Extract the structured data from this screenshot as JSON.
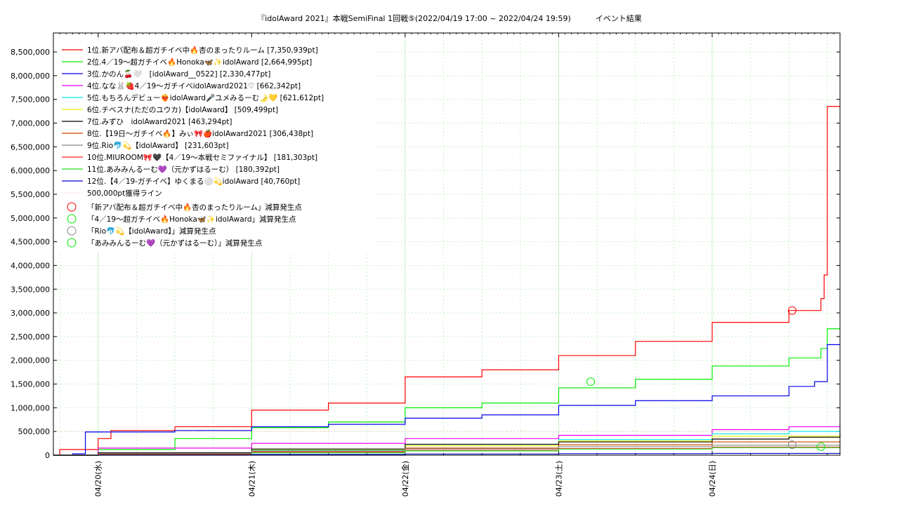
{
  "chart_data": {
    "type": "line",
    "title": "『idolAward 2021』本戦SemiFinal 1回戦⑤(2022/04/19 17:00 ~ 2022/04/24 19:59)          イベント結果",
    "xlabel": "",
    "ylabel": "",
    "x_range": [
      "2022-04-19 17:00",
      "2022-04-24 19:59"
    ],
    "ylim": [
      0,
      8900000
    ],
    "yticks": [
      0,
      500000,
      1000000,
      1500000,
      2000000,
      2500000,
      3000000,
      3500000,
      4000000,
      4500000,
      5000000,
      5500000,
      6000000,
      6500000,
      7000000,
      7500000,
      8000000,
      8500000
    ],
    "ytick_labels": [
      "0",
      "500,000",
      "1,000,000",
      "1,500,000",
      "2,000,000",
      "2,500,000",
      "3,000,000",
      "3,500,000",
      "4,000,000",
      "4,500,000",
      "5,000,000",
      "5,500,000",
      "6,000,000",
      "6,500,000",
      "7,000,000",
      "7,500,000",
      "8,000,000",
      "8,500,000"
    ],
    "xticks": [
      "2022-04-20 00:00",
      "2022-04-21 00:00",
      "2022-04-22 00:00",
      "2022-04-23 00:00",
      "2022-04-24 00:00"
    ],
    "xtick_labels": [
      "04/20(水)",
      "04/21(木)",
      "04/22(金)",
      "04/23(土)",
      "04/24(日)"
    ],
    "grid": true,
    "legend_position": "top-left",
    "series": [
      {
        "name": "1位.新アバ配布＆超ガチイベ中🔥杏のまったりルーム [7,350,939pt]",
        "color": "#ff0000",
        "points": [
          [
            "2022-04-19 17:00",
            0
          ],
          [
            "2022-04-19 18:00",
            120000
          ],
          [
            "2022-04-20 00:00",
            350000
          ],
          [
            "2022-04-20 02:00",
            520000
          ],
          [
            "2022-04-20 12:00",
            600000
          ],
          [
            "2022-04-21 00:00",
            950000
          ],
          [
            "2022-04-21 12:00",
            1100000
          ],
          [
            "2022-04-22 00:00",
            1650000
          ],
          [
            "2022-04-22 12:00",
            1800000
          ],
          [
            "2022-04-23 00:00",
            2100000
          ],
          [
            "2022-04-23 12:00",
            2400000
          ],
          [
            "2022-04-24 00:00",
            2800000
          ],
          [
            "2022-04-24 12:00",
            3050000
          ],
          [
            "2022-04-24 17:00",
            3300000
          ],
          [
            "2022-04-24 17:30",
            3800000
          ],
          [
            "2022-04-24 18:00",
            7350939
          ],
          [
            "2022-04-24 19:59",
            7350939
          ]
        ]
      },
      {
        "name": "2位.4／19〜超ガチイベ🔥Honoka🦋✨idolAward [2,664,995pt]",
        "color": "#00ee00",
        "points": [
          [
            "2022-04-19 17:00",
            0
          ],
          [
            "2022-04-20 00:00",
            120000
          ],
          [
            "2022-04-20 12:00",
            350000
          ],
          [
            "2022-04-21 00:00",
            580000
          ],
          [
            "2022-04-21 12:00",
            700000
          ],
          [
            "2022-04-22 00:00",
            1000000
          ],
          [
            "2022-04-22 12:00",
            1100000
          ],
          [
            "2022-04-23 00:00",
            1420000
          ],
          [
            "2022-04-23 12:00",
            1600000
          ],
          [
            "2022-04-24 00:00",
            1880000
          ],
          [
            "2022-04-24 12:00",
            2050000
          ],
          [
            "2022-04-24 17:00",
            2250000
          ],
          [
            "2022-04-24 18:00",
            2664995
          ],
          [
            "2022-04-24 19:59",
            2664995
          ]
        ]
      },
      {
        "name": "3位.かのん🍒🤍　[idolAward__0522] [2,330,477pt]",
        "color": "#0000ee",
        "points": [
          [
            "2022-04-19 17:00",
            0
          ],
          [
            "2022-04-19 20:00",
            30000
          ],
          [
            "2022-04-19 22:00",
            490000
          ],
          [
            "2022-04-20 12:00",
            520000
          ],
          [
            "2022-04-21 00:00",
            600000
          ],
          [
            "2022-04-21 12:00",
            650000
          ],
          [
            "2022-04-22 00:00",
            780000
          ],
          [
            "2022-04-22 12:00",
            850000
          ],
          [
            "2022-04-23 00:00",
            1050000
          ],
          [
            "2022-04-23 12:00",
            1150000
          ],
          [
            "2022-04-24 00:00",
            1250000
          ],
          [
            "2022-04-24 12:00",
            1450000
          ],
          [
            "2022-04-24 16:00",
            1550000
          ],
          [
            "2022-04-24 18:00",
            2330477
          ],
          [
            "2022-04-24 19:59",
            2330477
          ]
        ]
      },
      {
        "name": "4位.なな🐰🍓4／19〜ガチイベidolAward2021♡ [662,342pt]",
        "color": "#ee00ee",
        "points": [
          [
            "2022-04-19 17:00",
            0
          ],
          [
            "2022-04-20 00:00",
            150000
          ],
          [
            "2022-04-21 00:00",
            250000
          ],
          [
            "2022-04-22 00:00",
            350000
          ],
          [
            "2022-04-23 00:00",
            420000
          ],
          [
            "2022-04-24 00:00",
            540000
          ],
          [
            "2022-04-24 12:00",
            600000
          ],
          [
            "2022-04-24 19:59",
            662342
          ]
        ]
      },
      {
        "name": "5位.もちろんデビュー❤️‍🔥idolAward🎤ユメみるーむ🌛💛 [621,612pt]",
        "color": "#00eeee",
        "points": [
          [
            "2022-04-19 17:00",
            0
          ],
          [
            "2022-04-20 00:00",
            20000
          ],
          [
            "2022-04-21 00:00",
            100000
          ],
          [
            "2022-04-22 00:00",
            200000
          ],
          [
            "2022-04-23 00:00",
            330000
          ],
          [
            "2022-04-24 00:00",
            450000
          ],
          [
            "2022-04-24 12:00",
            500000
          ],
          [
            "2022-04-24 19:59",
            621612
          ]
        ]
      },
      {
        "name": "6位.チベスナ(ただのユウカ)【idolAward】 [509,499pt]",
        "color": "#eeee00",
        "points": [
          [
            "2022-04-19 17:00",
            0
          ],
          [
            "2022-04-20 00:00",
            30000
          ],
          [
            "2022-04-21 00:00",
            120000
          ],
          [
            "2022-04-22 00:00",
            200000
          ],
          [
            "2022-04-23 00:00",
            300000
          ],
          [
            "2022-04-24 00:00",
            400000
          ],
          [
            "2022-04-24 19:59",
            509499
          ]
        ]
      },
      {
        "name": "7位.みずひ　idolAward2021 [463,294pt]",
        "color": "#000000",
        "points": [
          [
            "2022-04-19 17:00",
            0
          ],
          [
            "2022-04-20 00:00",
            50000
          ],
          [
            "2022-04-21 00:00",
            130000
          ],
          [
            "2022-04-22 00:00",
            230000
          ],
          [
            "2022-04-23 00:00",
            280000
          ],
          [
            "2022-04-24 00:00",
            340000
          ],
          [
            "2022-04-24 12:00",
            380000
          ],
          [
            "2022-04-24 19:59",
            463294
          ]
        ]
      },
      {
        "name": "8位.【19日〜ガチイベ🔥】みぃ🎀🍎idolAward2021 [306,438pt]",
        "color": "#cc4400",
        "points": [
          [
            "2022-04-19 17:00",
            0
          ],
          [
            "2022-04-20 00:00",
            20000
          ],
          [
            "2022-04-21 00:00",
            80000
          ],
          [
            "2022-04-22 00:00",
            150000
          ],
          [
            "2022-04-23 00:00",
            220000
          ],
          [
            "2022-04-24 00:00",
            280000
          ],
          [
            "2022-04-24 19:59",
            306438
          ]
        ]
      },
      {
        "name": "9位.Rio🐬💫【idolAward】 [231,603pt]",
        "color": "#888888",
        "points": [
          [
            "2022-04-19 17:00",
            0
          ],
          [
            "2022-04-20 00:00",
            30000
          ],
          [
            "2022-04-21 00:00",
            90000
          ],
          [
            "2022-04-22 00:00",
            130000
          ],
          [
            "2022-04-23 00:00",
            180000
          ],
          [
            "2022-04-24 00:00",
            210000
          ],
          [
            "2022-04-24 19:59",
            231603
          ]
        ]
      },
      {
        "name": "10位.MIUROOM🎀🖤【4／19〜本戦セミファイナル】 [181,303pt]",
        "color": "#ff2222",
        "points": [
          [
            "2022-04-19 17:00",
            0
          ],
          [
            "2022-04-20 00:00",
            20000
          ],
          [
            "2022-04-21 00:00",
            60000
          ],
          [
            "2022-04-22 00:00",
            100000
          ],
          [
            "2022-04-23 00:00",
            140000
          ],
          [
            "2022-04-24 00:00",
            170000
          ],
          [
            "2022-04-24 19:59",
            181303
          ]
        ]
      },
      {
        "name": "11位.あみみんるーむ💜（元かずはるーむ） [180,392pt]",
        "color": "#22dd22",
        "points": [
          [
            "2022-04-19 17:00",
            0
          ],
          [
            "2022-04-20 00:00",
            10000
          ],
          [
            "2022-04-21 00:00",
            50000
          ],
          [
            "2022-04-22 00:00",
            90000
          ],
          [
            "2022-04-23 00:00",
            130000
          ],
          [
            "2022-04-24 00:00",
            160000
          ],
          [
            "2022-04-24 19:59",
            180392
          ]
        ]
      },
      {
        "name": "12位.【4／19-ガチイベ】ゆくまる⚪️💫idolAward [40,760pt]",
        "color": "#0000cc",
        "points": [
          [
            "2022-04-19 17:00",
            0
          ],
          [
            "2022-04-20 00:00",
            5000
          ],
          [
            "2022-04-21 00:00",
            15000
          ],
          [
            "2022-04-22 00:00",
            25000
          ],
          [
            "2022-04-23 00:00",
            32000
          ],
          [
            "2022-04-24 00:00",
            38000
          ],
          [
            "2022-04-24 19:59",
            40760
          ]
        ]
      }
    ],
    "reference_line": {
      "label": "500,000pt獲得ライン",
      "value": 500000,
      "color": "#ffaaaa"
    },
    "markers": [
      {
        "label": "「新アバ配布＆超ガチイベ中🔥杏のまったりルーム」減算発生点",
        "color": "#ff0000",
        "x": "2022-04-24 12:30",
        "y": 3050000
      },
      {
        "label": "「4／19〜超ガチイベ🔥Honoka🦋✨idolAward」減算発生点",
        "color": "#00ee00",
        "x": "2022-04-23 05:00",
        "y": 1550000
      },
      {
        "label": "「Rio🐬💫【idolAward】」減算発生点",
        "color": "#888888",
        "x": "2022-04-24 12:30",
        "y": 220000
      },
      {
        "label": "「あみみんるーむ💜（元かずはるーむ）」減算発生点",
        "color": "#00ee00",
        "x": "2022-04-24 17:00",
        "y": 180000
      }
    ]
  }
}
